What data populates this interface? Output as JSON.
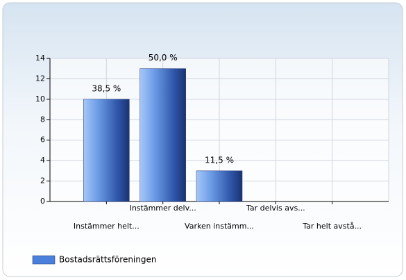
{
  "chart_data": {
    "type": "bar",
    "categories": [
      "Instämmer helt...",
      "Instämmer delv...",
      "Varken instämm...",
      "Tar delvis avs...",
      "Tar helt avstå..."
    ],
    "series": [
      {
        "name": "Bostadsrättsföreningen",
        "color": "#4a80dc",
        "values": [
          10,
          13,
          3,
          0,
          0
        ],
        "value_labels": [
          "38,5 %",
          "50,0 %",
          "11,5 %",
          null,
          null
        ]
      }
    ],
    "ylim": [
      0,
      14
    ],
    "yticks": [
      0,
      2,
      4,
      6,
      8,
      10,
      12,
      14
    ],
    "grid": true,
    "legend": "bottom-left"
  }
}
